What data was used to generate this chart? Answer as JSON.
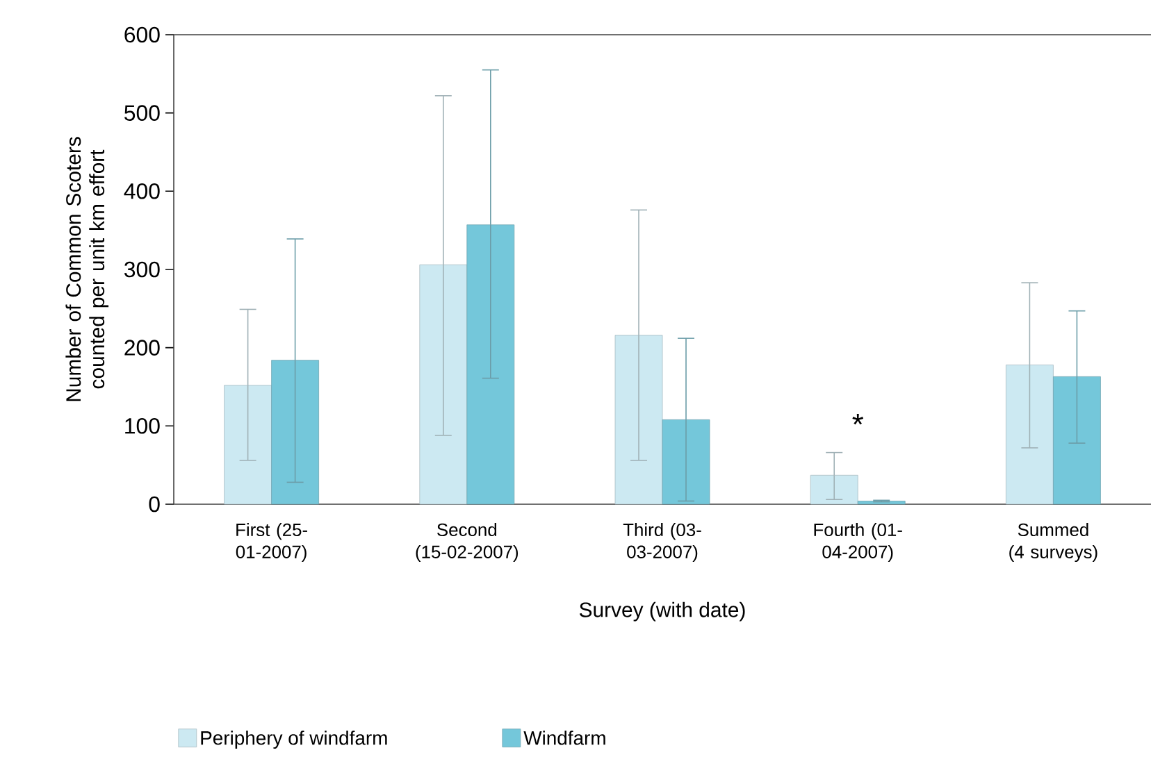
{
  "chart_data": {
    "type": "bar",
    "xlabel": "Survey (with date)",
    "ylabel": "Number of Common Scoters counted per unit km effort",
    "categories": [
      "First (25-01-2007)",
      "Second (15-02-2007)",
      "Third (03-03-2007)",
      "Fourth (01-04-2007)",
      "Summed (4 surveys)"
    ],
    "series": [
      {
        "name": "Periphery of windfarm",
        "color": "#cce9f2",
        "values": [
          152,
          306,
          216,
          37,
          178
        ],
        "errors": [
          [
            56,
            249
          ],
          [
            88,
            522
          ],
          [
            56,
            376
          ],
          [
            6,
            66
          ],
          [
            72,
            283
          ]
        ]
      },
      {
        "name": "Windfarm",
        "color": "#74c7da",
        "values": [
          184,
          357,
          108,
          4,
          163
        ],
        "errors": [
          [
            28,
            339
          ],
          [
            161,
            555
          ],
          [
            4,
            212
          ],
          [
            3,
            5
          ],
          [
            78,
            247
          ]
        ]
      }
    ],
    "ylim": [
      0,
      600
    ],
    "yticks": [
      0,
      100,
      200,
      300,
      400,
      500,
      600
    ],
    "annotations": [
      "*"
    ],
    "grid": false,
    "legend": "bottom"
  }
}
